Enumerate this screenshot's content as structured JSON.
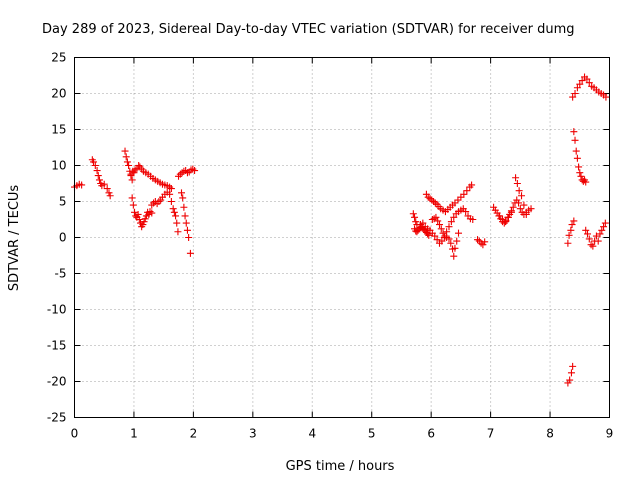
{
  "chart_data": {
    "type": "scatter",
    "title": "Day 289 of 2023, Sidereal Day-to-day VTEC variation (SDTVAR) for receiver dumg",
    "xlabel": "GPS time / hours",
    "ylabel": "SDTVAR / TECUs",
    "xlim": [
      0,
      9
    ],
    "ylim": [
      -25,
      25
    ],
    "x_ticks": [
      "0",
      "1",
      "2",
      "3",
      "4",
      "5",
      "6",
      "7",
      "8",
      "9"
    ],
    "y_ticks": [
      "25",
      "20",
      "15",
      "10",
      "5",
      "0",
      "-5",
      "-10",
      "-15",
      "-20",
      "-25"
    ],
    "grid": true,
    "marker": "plus",
    "marker_color": "#ee0000",
    "series_segments": [
      {
        "x": [
          0.0,
          0.04,
          0.08,
          0.12
        ],
        "y": [
          7.0,
          7.2,
          7.4,
          7.3
        ]
      },
      {
        "x": [
          0.3,
          0.32,
          0.35,
          0.38,
          0.4,
          0.42,
          0.44,
          0.46,
          0.5,
          0.55,
          0.58,
          0.6
        ],
        "y": [
          10.8,
          10.5,
          10.0,
          9.3,
          8.6,
          8.0,
          7.5,
          7.2,
          7.4,
          6.8,
          6.2,
          5.8
        ]
      },
      {
        "x": [
          0.85,
          0.87,
          0.89,
          0.91,
          0.93,
          0.95,
          0.97
        ],
        "y": [
          12.0,
          11.2,
          10.5,
          10.0,
          9.2,
          8.6,
          8.0
        ]
      },
      {
        "x": [
          0.95,
          0.98,
          1.0,
          1.02,
          1.05,
          1.08,
          1.1,
          1.13,
          1.16,
          1.2,
          1.24,
          1.28,
          1.32,
          1.36,
          1.4,
          1.44,
          1.48,
          1.52,
          1.56,
          1.6,
          1.63
        ],
        "y": [
          8.8,
          9.2,
          9.0,
          9.4,
          9.6,
          10.0,
          9.8,
          9.5,
          9.2,
          9.0,
          8.8,
          8.5,
          8.2,
          8.0,
          7.8,
          7.6,
          7.4,
          7.3,
          7.2,
          7.0,
          6.8
        ]
      },
      {
        "x": [
          0.97,
          0.99,
          1.01,
          1.03,
          1.05,
          1.07,
          1.09,
          1.11,
          1.13,
          1.15,
          1.17,
          1.19,
          1.21,
          1.23,
          1.25,
          1.27,
          1.3
        ],
        "y": [
          5.5,
          4.5,
          3.5,
          3.0,
          2.8,
          3.2,
          2.5,
          2.0,
          1.5,
          1.8,
          2.2,
          2.6,
          3.0,
          3.5,
          3.2,
          3.6,
          3.4
        ]
      },
      {
        "x": [
          1.3,
          1.33,
          1.36,
          1.39,
          1.42,
          1.45,
          1.48,
          1.52,
          1.56,
          1.6,
          1.63,
          1.66,
          1.68,
          1.7,
          1.72,
          1.74
        ],
        "y": [
          4.5,
          4.8,
          5.0,
          4.7,
          5.0,
          5.2,
          5.6,
          6.0,
          6.3,
          6.0,
          5.0,
          4.0,
          3.5,
          3.0,
          2.0,
          0.8
        ]
      },
      {
        "x": [
          1.8,
          1.82,
          1.84,
          1.86,
          1.88,
          1.9,
          1.92,
          1.95
        ],
        "y": [
          6.2,
          5.5,
          4.2,
          3.0,
          2.0,
          1.0,
          0.0,
          -2.2
        ]
      },
      {
        "x": [
          1.75,
          1.78,
          1.81,
          1.84,
          1.87,
          1.9,
          1.93,
          1.96,
          1.99,
          2.02
        ],
        "y": [
          8.5,
          8.8,
          9.0,
          9.2,
          9.3,
          9.0,
          9.1,
          9.4,
          9.5,
          9.3
        ]
      },
      {
        "x": [
          5.7,
          5.72,
          5.74,
          5.76,
          5.72,
          5.74,
          5.76,
          5.78,
          5.8,
          5.82,
          5.84,
          5.86,
          5.88,
          5.9,
          5.92,
          5.94,
          5.96
        ],
        "y": [
          3.3,
          2.8,
          2.2,
          1.8,
          1.2,
          0.9,
          0.8,
          1.0,
          1.2,
          1.4,
          1.5,
          1.3,
          1.1,
          0.9,
          0.7,
          0.5,
          0.3
        ]
      },
      {
        "x": [
          5.92,
          5.95,
          5.98,
          6.01,
          6.04,
          6.07,
          6.1,
          6.13,
          6.16,
          6.2,
          6.24,
          6.28,
          6.32,
          6.36,
          6.4,
          6.45,
          6.5,
          6.55,
          6.6,
          6.65,
          6.68
        ],
        "y": [
          6.0,
          5.6,
          5.4,
          5.2,
          5.0,
          4.8,
          4.6,
          4.3,
          4.0,
          3.8,
          3.6,
          3.9,
          4.2,
          4.5,
          4.8,
          5.2,
          5.6,
          6.0,
          6.5,
          7.0,
          7.3
        ]
      },
      {
        "x": [
          5.82,
          5.86,
          5.9,
          5.94,
          5.98,
          6.02,
          6.06,
          6.1,
          6.14,
          6.18,
          6.22,
          6.26,
          6.3,
          6.34,
          6.38,
          6.42,
          6.46,
          6.5,
          6.54,
          6.58,
          6.62,
          6.66,
          6.7
        ],
        "y": [
          1.8,
          2.0,
          1.5,
          1.2,
          1.0,
          0.6,
          0.2,
          -0.3,
          -0.8,
          -0.5,
          0.0,
          0.8,
          1.5,
          2.2,
          2.8,
          3.3,
          3.6,
          3.8,
          4.0,
          3.6,
          3.0,
          2.6,
          2.5
        ]
      },
      {
        "x": [
          6.02,
          6.05,
          6.08,
          6.11,
          6.14,
          6.17,
          6.2,
          6.23,
          6.26,
          6.3,
          6.33,
          6.36,
          6.38,
          6.4,
          6.43,
          6.46
        ],
        "y": [
          2.5,
          2.6,
          2.8,
          2.3,
          1.8,
          1.2,
          0.6,
          0.2,
          0.0,
          -0.2,
          -0.8,
          -1.6,
          -2.6,
          -1.5,
          -0.5,
          0.6
        ]
      },
      {
        "x": [
          6.78,
          6.81,
          6.84,
          6.87,
          6.9
        ],
        "y": [
          -0.3,
          -0.5,
          -0.8,
          -1.0,
          -0.6
        ]
      },
      {
        "x": [
          7.05,
          7.08,
          7.11,
          7.14,
          7.17,
          7.2,
          7.23,
          7.26,
          7.29,
          7.32,
          7.35,
          7.38,
          7.41,
          7.44,
          7.47,
          7.5,
          7.53,
          7.56,
          7.6,
          7.64,
          7.68
        ],
        "y": [
          4.2,
          3.8,
          3.4,
          3.0,
          2.6,
          2.2,
          2.0,
          2.3,
          2.8,
          3.2,
          3.7,
          4.2,
          4.8,
          5.2,
          4.8,
          4.0,
          3.5,
          3.2,
          3.5,
          3.8,
          4.0
        ]
      },
      {
        "x": [
          7.15,
          7.2,
          7.25,
          7.3,
          7.35,
          7.42,
          7.45,
          7.48,
          7.52,
          7.56,
          7.6
        ],
        "y": [
          3.0,
          2.5,
          2.2,
          2.8,
          3.5,
          8.3,
          7.5,
          6.5,
          5.8,
          4.5,
          3.2
        ]
      },
      {
        "x": [
          8.3,
          8.33,
          8.36,
          8.38
        ],
        "y": [
          -20.2,
          -19.8,
          -18.8,
          -17.9
        ]
      },
      {
        "x": [
          8.3,
          8.32,
          8.35,
          8.37,
          8.4
        ],
        "y": [
          -0.8,
          0.3,
          1.0,
          1.8,
          2.3
        ]
      },
      {
        "x": [
          8.4,
          8.42,
          8.44,
          8.46,
          8.48,
          8.5,
          8.52,
          8.54,
          8.56,
          8.58,
          8.6
        ],
        "y": [
          14.7,
          13.5,
          12.0,
          11.0,
          9.8,
          9.0,
          8.5,
          8.0,
          7.8,
          8.0,
          7.7
        ]
      },
      {
        "x": [
          8.38,
          8.42,
          8.46,
          8.5,
          8.54,
          8.58,
          8.62,
          8.66,
          8.7,
          8.74,
          8.78,
          8.82,
          8.86,
          8.9,
          8.94
        ],
        "y": [
          19.5,
          20.0,
          20.8,
          21.3,
          21.8,
          22.3,
          22.0,
          21.5,
          21.0,
          20.8,
          20.5,
          20.2,
          20.0,
          19.8,
          19.5
        ]
      },
      {
        "x": [
          8.6,
          8.63,
          8.66,
          8.69,
          8.72,
          8.75,
          8.78,
          8.81,
          8.84,
          8.87,
          8.9,
          8.93
        ],
        "y": [
          1.0,
          0.5,
          -0.2,
          -1.0,
          -1.2,
          -0.5,
          0.2,
          -0.5,
          0.5,
          1.0,
          1.5,
          2.0
        ]
      }
    ]
  }
}
